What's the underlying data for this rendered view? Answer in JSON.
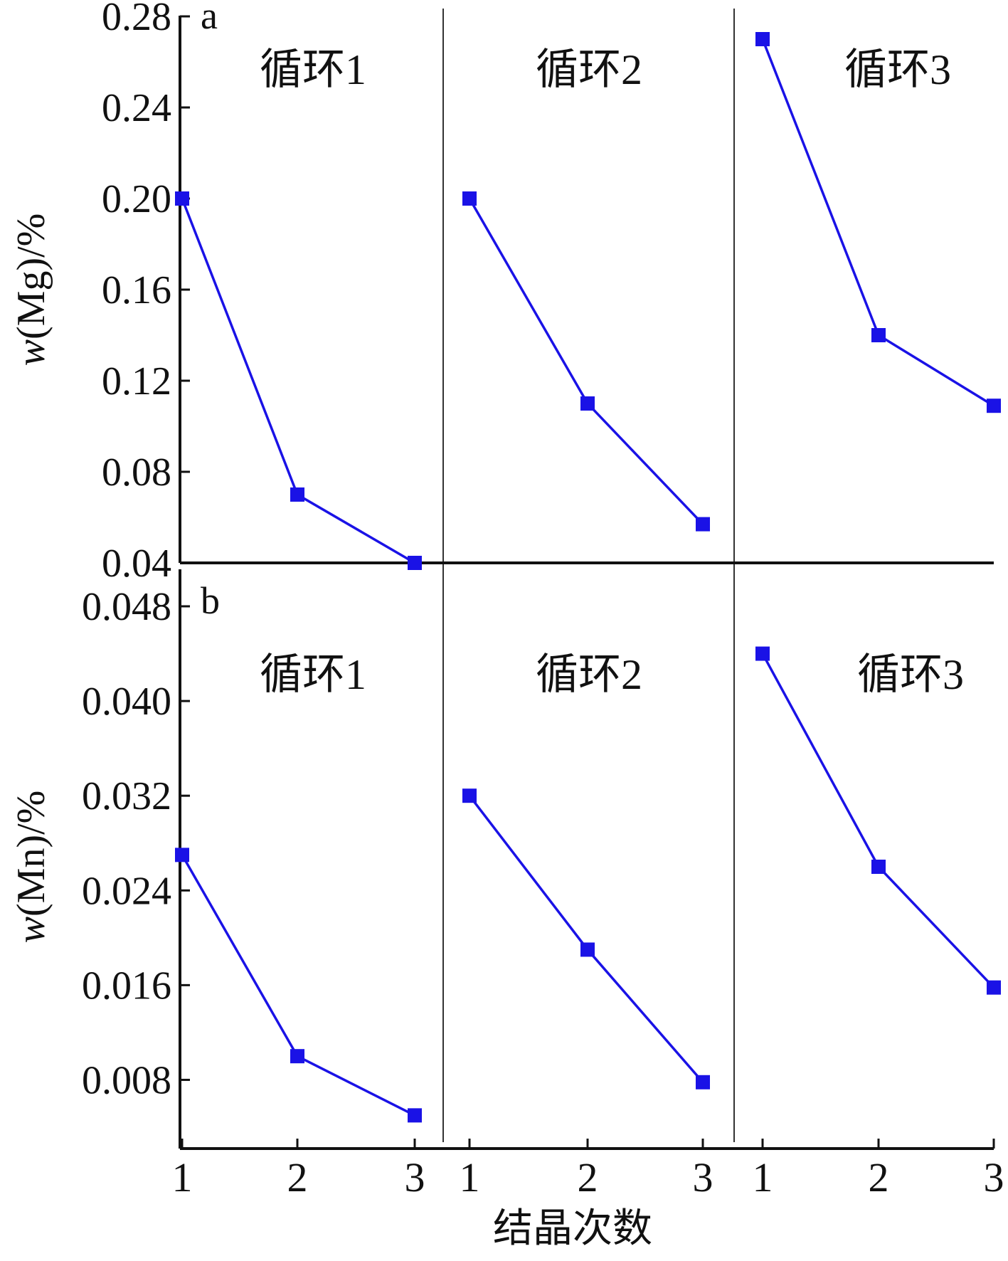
{
  "colors": {
    "series": "#1a12e6",
    "axis": "#111111",
    "divider": "#333333"
  },
  "x_axis_title": "结晶次数",
  "panels": [
    {
      "id": "a",
      "tag": "a",
      "ylabel": "w(Mg)/%",
      "ylabel_var": "w",
      "ylabel_rest": "(Mg)/%",
      "ylim": [
        0.04,
        0.28
      ],
      "yticks": [
        "0.28",
        "0.24",
        "0.20",
        "0.16",
        "0.12",
        "0.08",
        "0.04"
      ],
      "cycles": [
        "循环1",
        "循环2",
        "循环3"
      ]
    },
    {
      "id": "b",
      "tag": "b",
      "ylabel": "w(Mn)/%",
      "ylabel_var": "w",
      "ylabel_rest": "(Mn)/%",
      "ylim": [
        0.004,
        0.048
      ],
      "yticks": [
        "0.048",
        "0.040",
        "0.032",
        "0.024",
        "0.016",
        "0.008"
      ],
      "cycles": [
        "循环1",
        "循环2",
        "循环3"
      ]
    }
  ],
  "chart_data": [
    {
      "type": "line",
      "panel": "a",
      "ylabel": "w(Mg)/%",
      "xlabel": "结晶次数",
      "ylim": [
        0.04,
        0.28
      ],
      "categories": [
        "1",
        "2",
        "3"
      ],
      "series": [
        {
          "name": "循环1",
          "values": [
            0.2,
            0.07,
            0.04
          ]
        },
        {
          "name": "循环2",
          "values": [
            0.2,
            0.11,
            0.057
          ]
        },
        {
          "name": "循环3",
          "values": [
            0.27,
            0.14,
            0.109
          ]
        }
      ],
      "grid": false
    },
    {
      "type": "line",
      "panel": "b",
      "ylabel": "w(Mn)/%",
      "xlabel": "结晶次数",
      "ylim": [
        0.004,
        0.048
      ],
      "categories": [
        "1",
        "2",
        "3"
      ],
      "series": [
        {
          "name": "循环1",
          "values": [
            0.027,
            0.01,
            0.005
          ]
        },
        {
          "name": "循环2",
          "values": [
            0.032,
            0.019,
            0.0078
          ]
        },
        {
          "name": "循环3",
          "values": [
            0.044,
            0.026,
            0.0158
          ]
        }
      ],
      "grid": false
    }
  ]
}
